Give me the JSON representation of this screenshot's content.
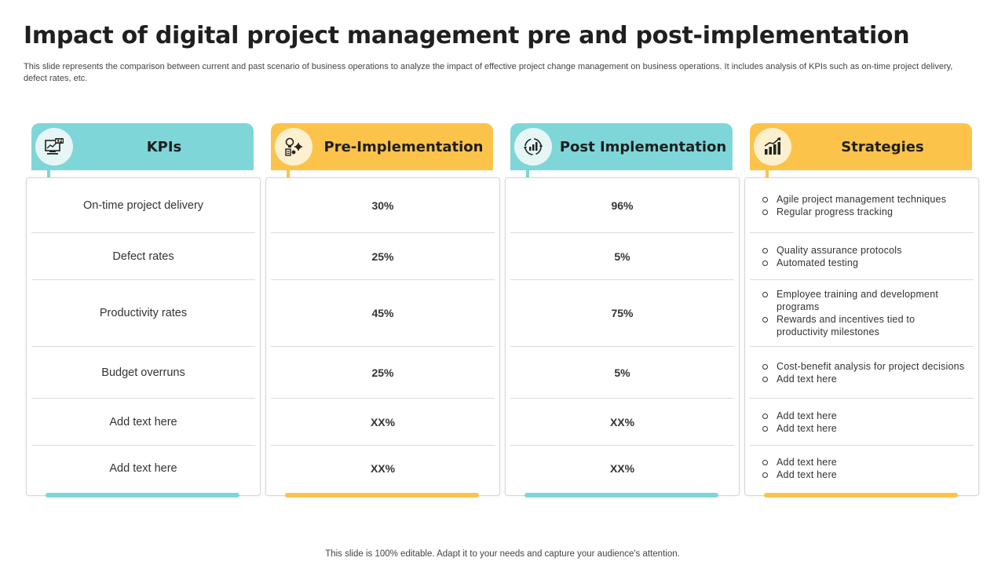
{
  "title": "Impact of digital project management pre and post-implementation",
  "subtitle": "This slide represents the comparison between current and past scenario of business operations to analyze the impact of effective project change management on business operations. It includes analysis of KPIs such as on-time project delivery, defect rates, etc.",
  "footer": "This slide is 100% editable. Adapt it to your needs and capture your audience's attention.",
  "colors": {
    "teal": "#7fd6d8",
    "yellow": "#fcc34b"
  },
  "columns": [
    {
      "header": "KPIs",
      "icon": "kpi-monitor-icon",
      "rows": [
        "On-time project delivery",
        "Defect rates",
        "Productivity rates",
        "Budget overruns",
        "Add text here",
        "Add text here"
      ]
    },
    {
      "header": "Pre-Implementation",
      "icon": "idea-gears-icon",
      "rows": [
        "30%",
        "25%",
        "45%",
        "25%",
        "XX%",
        "XX%"
      ]
    },
    {
      "header": "Post Implementation",
      "icon": "process-cycle-icon",
      "rows": [
        "96%",
        "5%",
        "75%",
        "5%",
        "XX%",
        "XX%"
      ]
    },
    {
      "header": "Strategies",
      "icon": "growth-chart-icon",
      "rows": [
        [
          "Agile project management techniques",
          "Regular progress tracking"
        ],
        [
          "Quality assurance protocols",
          "Automated testing"
        ],
        [
          "Employee training and development programs",
          "Rewards and incentives tied to productivity milestones"
        ],
        [
          "Cost-benefit analysis for project decisions",
          "Add text here"
        ],
        [
          "Add text here",
          "Add text here"
        ],
        [
          "Add text here",
          "Add text here"
        ]
      ]
    }
  ]
}
